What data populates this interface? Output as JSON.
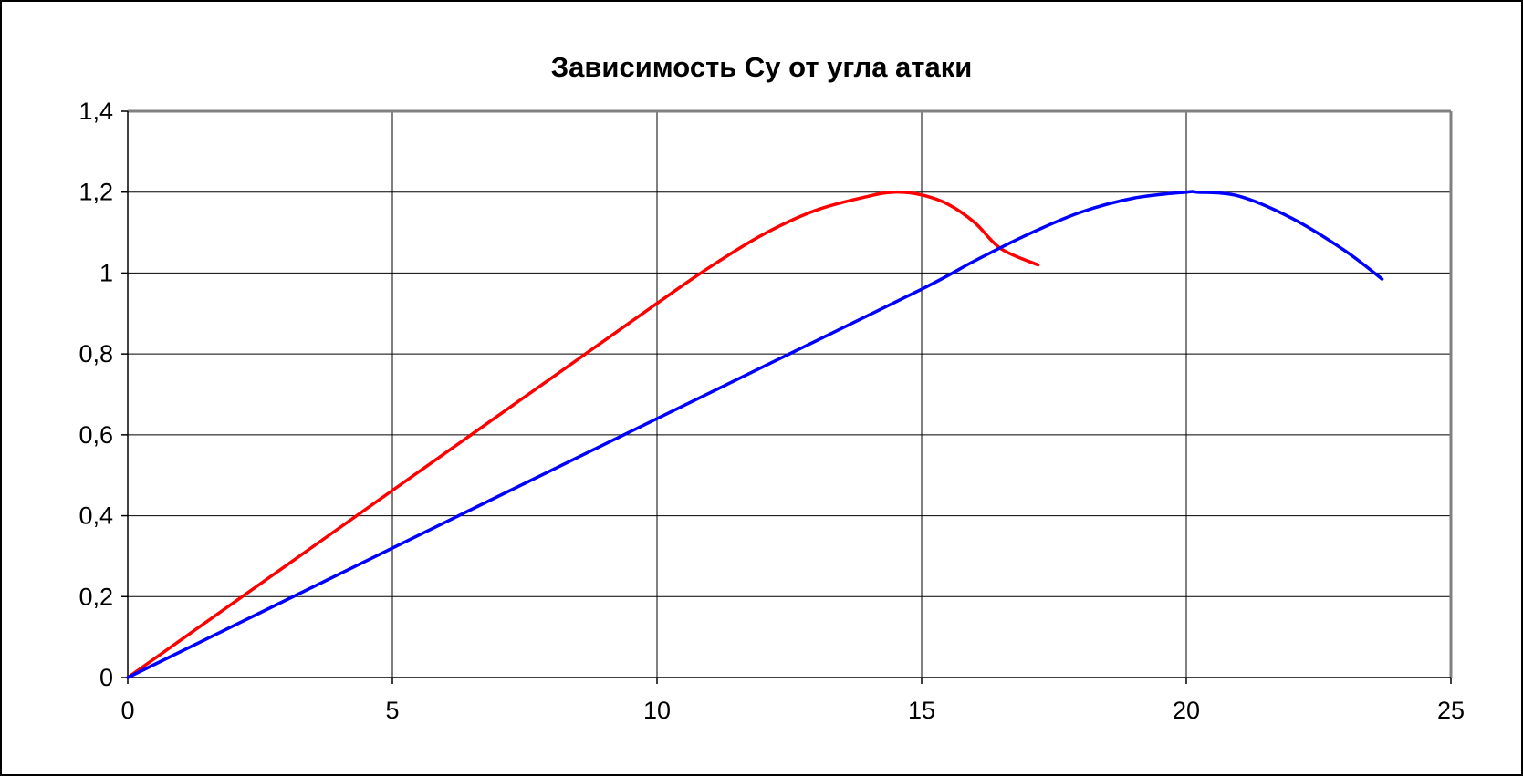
{
  "chart_data": {
    "type": "line",
    "title": "Зависимость Су от угла атаки",
    "xlabel": "",
    "ylabel": "",
    "xlim": [
      0,
      25
    ],
    "ylim": [
      0,
      1.4
    ],
    "x_ticks": [
      0,
      5,
      10,
      15,
      20,
      25
    ],
    "y_ticks": [
      0,
      0.2,
      0.4,
      0.6,
      0.8,
      1,
      1.2,
      1.4
    ],
    "x_tick_labels": [
      "0",
      "5",
      "10",
      "15",
      "20",
      "25"
    ],
    "y_tick_labels": [
      "0",
      "0,2",
      "0,4",
      "0,6",
      "0,8",
      "1",
      "1,2",
      "1,4"
    ],
    "grid": true,
    "legend": "none",
    "series": [
      {
        "color": "#ff0000",
        "x": [
          0,
          2,
          4,
          6,
          8,
          10,
          11,
          12,
          13,
          14,
          14.5,
          15,
          15.5,
          16,
          16.5,
          17.2
        ],
        "y": [
          0,
          0.185,
          0.37,
          0.555,
          0.74,
          0.925,
          1.015,
          1.095,
          1.155,
          1.19,
          1.2,
          1.193,
          1.17,
          1.125,
          1.06,
          1.02
        ]
      },
      {
        "color": "#0000ff",
        "x": [
          0,
          4,
          8,
          12,
          15,
          16,
          17,
          18,
          19,
          20,
          20.2,
          21,
          22,
          23,
          23.7
        ],
        "y": [
          0,
          0.256,
          0.512,
          0.768,
          0.96,
          1.03,
          1.095,
          1.15,
          1.185,
          1.2,
          1.2,
          1.19,
          1.135,
          1.055,
          0.985
        ]
      }
    ]
  }
}
